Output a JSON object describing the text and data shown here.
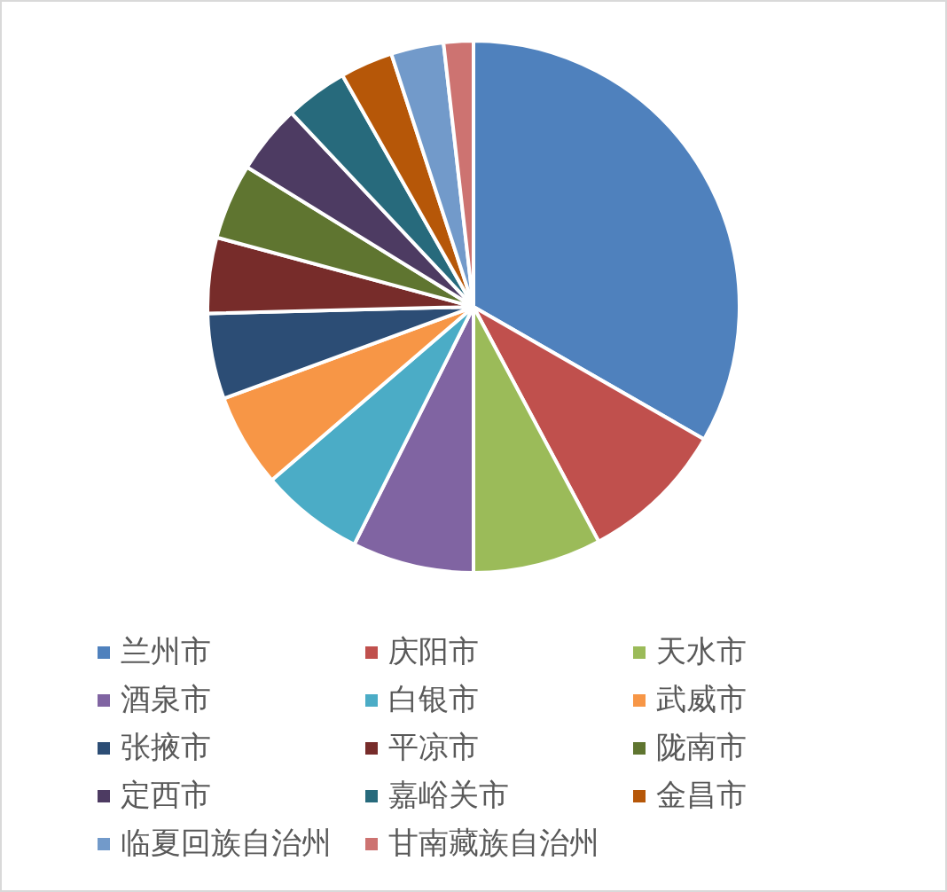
{
  "chart_data": {
    "type": "pie",
    "categories": [
      "兰州市",
      "庆阳市",
      "天水市",
      "酒泉市",
      "白银市",
      "武威市",
      "张掖市",
      "平凉市",
      "陇南市",
      "定西市",
      "嘉峪关市",
      "金昌市",
      "临夏回族自治州",
      "甘南藏族自治州"
    ],
    "values": [
      33.3,
      8.9,
      7.8,
      7.4,
      6.3,
      5.7,
      5.2,
      4.6,
      4.6,
      4.2,
      3.8,
      3.2,
      3.2,
      1.8
    ],
    "colors": [
      "#4f81bd",
      "#c0504d",
      "#9bbb59",
      "#8064a2",
      "#4bacc6",
      "#f79646",
      "#2c4d75",
      "#772c2a",
      "#5f7530",
      "#4d3b62",
      "#276a7c",
      "#b65708",
      "#729aca",
      "#cd7371"
    ],
    "legend": "bottom"
  }
}
